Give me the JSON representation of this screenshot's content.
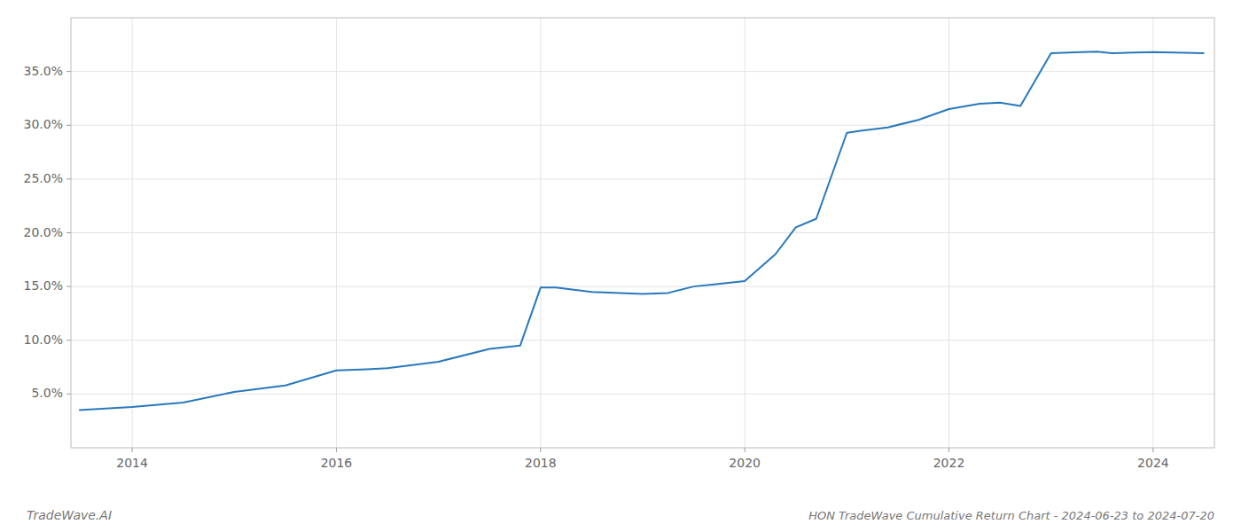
{
  "chart_data": {
    "type": "line",
    "title": "HON TradeWave Cumulative Return Chart - 2024-06-23 to 2024-07-20",
    "annotations": [
      "TradeWave.AI"
    ],
    "x": [
      2013.48,
      2014.0,
      2014.5,
      2015.0,
      2015.5,
      2016.0,
      2016.3,
      2016.5,
      2017.0,
      2017.5,
      2017.8,
      2018.0,
      2018.15,
      2018.5,
      2019.0,
      2019.25,
      2019.5,
      2019.7,
      2020.0,
      2020.3,
      2020.5,
      2020.7,
      2021.0,
      2021.15,
      2021.4,
      2021.7,
      2022.0,
      2022.3,
      2022.5,
      2022.7,
      2023.0,
      2023.3,
      2023.45,
      2023.6,
      2024.0,
      2024.5
    ],
    "values": [
      3.5,
      3.8,
      4.2,
      5.2,
      5.8,
      7.2,
      7.3,
      7.4,
      8.0,
      9.2,
      9.5,
      14.9,
      14.9,
      14.5,
      14.3,
      14.4,
      15.0,
      15.2,
      15.5,
      18.0,
      20.5,
      21.3,
      29.3,
      29.5,
      29.8,
      30.5,
      31.5,
      32.0,
      32.1,
      31.8,
      36.7,
      36.8,
      36.85,
      36.7,
      36.8,
      36.7
    ],
    "color": "#2878bd",
    "xlim": [
      2013.4,
      2024.6
    ],
    "ylim": [
      0,
      40
    ],
    "xticks": [
      2014,
      2016,
      2018,
      2020,
      2022,
      2024
    ],
    "yticks": [
      {
        "value": 5.0,
        "label": "5.0%"
      },
      {
        "value": 10.0,
        "label": "10.0%"
      },
      {
        "value": 15.0,
        "label": "15.0%"
      },
      {
        "value": 20.0,
        "label": "20.0%"
      },
      {
        "value": 25.0,
        "label": "25.0%"
      },
      {
        "value": 30.0,
        "label": "30.0%"
      },
      {
        "value": 35.0,
        "label": "35.0%"
      }
    ],
    "grid": true
  }
}
